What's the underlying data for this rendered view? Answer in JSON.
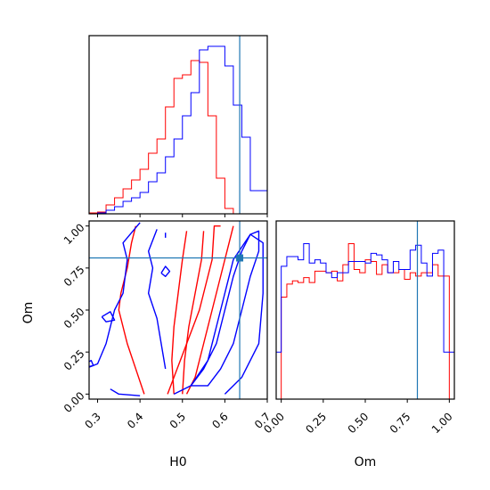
{
  "chart_data": {
    "type": "corner",
    "parameters": [
      "H0",
      "Om"
    ],
    "truth": {
      "H0": 0.635,
      "Om": 0.81
    },
    "colors": {
      "red": "#ff0000",
      "blue": "#0000ff",
      "truth": "#1f77b4"
    },
    "panels": {
      "h0_hist": {
        "type": "step-histogram",
        "xlim": [
          0.28,
          0.7
        ],
        "xticks": [
          0.3,
          0.4,
          0.5,
          0.6,
          0.7
        ],
        "tick_labels_visible": false,
        "series": [
          {
            "color": "red",
            "edges": [
              0.28,
              0.3,
              0.32,
              0.34,
              0.36,
              0.38,
              0.4,
              0.42,
              0.44,
              0.46,
              0.48,
              0.5,
              0.52,
              0.54,
              0.56,
              0.58,
              0.6,
              0.62
            ],
            "counts": [
              0.005,
              0.01,
              0.05,
              0.09,
              0.14,
              0.19,
              0.25,
              0.34,
              0.42,
              0.6,
              0.76,
              0.78,
              0.86,
              0.85,
              0.55,
              0.2,
              0.03
            ]
          },
          {
            "color": "blue",
            "edges": [
              0.3,
              0.32,
              0.34,
              0.36,
              0.38,
              0.4,
              0.42,
              0.44,
              0.46,
              0.48,
              0.5,
              0.52,
              0.54,
              0.56,
              0.58,
              0.6,
              0.62,
              0.64,
              0.66,
              0.68,
              0.7
            ],
            "counts": [
              0.005,
              0.02,
              0.04,
              0.07,
              0.09,
              0.12,
              0.18,
              0.23,
              0.32,
              0.42,
              0.55,
              0.68,
              0.92,
              0.94,
              0.94,
              0.83,
              0.61,
              0.43,
              0.13,
              0.13
            ]
          }
        ]
      },
      "om_hist": {
        "type": "step-histogram",
        "xlim": [
          -0.03,
          1.03
        ],
        "xticks": [
          0.0,
          0.25,
          0.5,
          0.75,
          1.0
        ],
        "tick_labels": [
          "0.00",
          "0.25",
          "0.50",
          "0.75",
          "1.00"
        ],
        "xlabel": "Om",
        "series": [
          {
            "color": "red",
            "edges": [
              0.0,
              0.0333,
              0.0667,
              0.1,
              0.1333,
              0.1667,
              0.2,
              0.2333,
              0.2667,
              0.3,
              0.3333,
              0.3667,
              0.4,
              0.4333,
              0.4667,
              0.5,
              0.5333,
              0.5667,
              0.6,
              0.6333,
              0.6667,
              0.7,
              0.7333,
              0.7667,
              0.8,
              0.8333,
              0.8667,
              0.9,
              0.9333,
              0.9667,
              1.0
            ],
            "counts": [
              0.63,
              0.71,
              0.73,
              0.72,
              0.75,
              0.72,
              0.79,
              0.79,
              0.78,
              0.79,
              0.73,
              0.83,
              0.96,
              0.8,
              0.78,
              0.86,
              0.85,
              0.77,
              0.83,
              0.78,
              0.78,
              0.8,
              0.74,
              0.78,
              0.76,
              0.78,
              0.78,
              0.83,
              0.76,
              0.76
            ]
          },
          {
            "color": "blue",
            "edges": [
              -0.0333,
              0.0,
              0.0333,
              0.0667,
              0.1,
              0.1333,
              0.1667,
              0.2,
              0.2333,
              0.2667,
              0.3,
              0.3333,
              0.3667,
              0.4,
              0.4333,
              0.4667,
              0.5,
              0.5333,
              0.5667,
              0.6,
              0.6333,
              0.6667,
              0.7,
              0.7333,
              0.7667,
              0.8,
              0.8333,
              0.8667,
              0.9,
              0.9333,
              0.9667,
              1.0,
              1.0333
            ],
            "counts": [
              0.29,
              0.82,
              0.88,
              0.88,
              0.86,
              0.96,
              0.84,
              0.86,
              0.84,
              0.78,
              0.75,
              0.78,
              0.78,
              0.85,
              0.85,
              0.85,
              0.84,
              0.9,
              0.89,
              0.86,
              0.78,
              0.85,
              0.8,
              0.8,
              0.92,
              0.95,
              0.84,
              0.76,
              0.9,
              0.92,
              0.29,
              0.29
            ]
          }
        ]
      },
      "joint": {
        "type": "contour",
        "xlim": [
          0.28,
          0.7
        ],
        "ylim": [
          -0.03,
          1.03
        ],
        "xticks": [
          0.3,
          0.4,
          0.5,
          0.6,
          0.7
        ],
        "xtick_labels": [
          "0.3",
          "0.4",
          "0.5",
          "0.6",
          "0.7"
        ],
        "yticks": [
          0.0,
          0.25,
          0.5,
          0.75,
          1.0
        ],
        "ytick_labels": [
          "0.00",
          "0.25",
          "0.50",
          "0.75",
          "1.00"
        ],
        "xlabel": "H0",
        "ylabel": "Om",
        "contours": [
          {
            "color": "red",
            "points": [
              [
                0.48,
                0.0
              ],
              [
                0.475,
                0.2
              ],
              [
                0.48,
                0.4
              ],
              [
                0.49,
                0.6
              ],
              [
                0.5,
                0.8
              ],
              [
                0.51,
                0.97
              ]
            ]
          },
          {
            "color": "red",
            "points": [
              [
                0.55,
                0.97
              ],
              [
                0.545,
                0.8
              ],
              [
                0.53,
                0.6
              ],
              [
                0.515,
                0.4
              ],
              [
                0.505,
                0.2
              ],
              [
                0.5,
                0.0
              ]
            ]
          },
          {
            "color": "red",
            "points": [
              [
                0.41,
                0.0
              ],
              [
                0.39,
                0.15
              ],
              [
                0.37,
                0.3
              ],
              [
                0.35,
                0.5
              ],
              [
                0.355,
                0.6
              ],
              [
                0.37,
                0.75
              ],
              [
                0.38,
                0.9
              ],
              [
                0.39,
                1.0
              ]
            ]
          },
          {
            "color": "red",
            "points": [
              [
                0.465,
                0.0
              ],
              [
                0.48,
                0.1
              ],
              [
                0.51,
                0.3
              ],
              [
                0.54,
                0.5
              ],
              [
                0.56,
                0.7
              ],
              [
                0.57,
                0.8
              ],
              [
                0.575,
                1.0
              ],
              [
                0.59,
                1.0
              ]
            ]
          },
          {
            "color": "red",
            "points": [
              [
                0.51,
                0.0
              ],
              [
                0.53,
                0.1
              ],
              [
                0.55,
                0.3
              ],
              [
                0.57,
                0.5
              ],
              [
                0.59,
                0.7
              ],
              [
                0.61,
                0.9
              ],
              [
                0.62,
                1.0
              ]
            ]
          },
          {
            "color": "blue",
            "points": [
              [
                0.52,
                0.05
              ],
              [
                0.55,
                0.15
              ],
              [
                0.58,
                0.3
              ],
              [
                0.6,
                0.5
              ],
              [
                0.62,
                0.7
              ],
              [
                0.64,
                0.85
              ],
              [
                0.66,
                0.95
              ],
              [
                0.68,
                0.97
              ],
              [
                0.68,
                0.85
              ],
              [
                0.66,
                0.7
              ],
              [
                0.64,
                0.5
              ],
              [
                0.62,
                0.3
              ],
              [
                0.59,
                0.15
              ],
              [
                0.56,
                0.05
              ],
              [
                0.52,
                0.05
              ]
            ]
          },
          {
            "color": "blue",
            "points": [
              [
                0.48,
                0.0
              ],
              [
                0.52,
                0.05
              ],
              [
                0.56,
                0.2
              ],
              [
                0.58,
                0.4
              ],
              [
                0.6,
                0.6
              ],
              [
                0.62,
                0.8
              ],
              [
                0.66,
                0.95
              ],
              [
                0.69,
                0.9
              ],
              [
                0.69,
                0.6
              ],
              [
                0.68,
                0.3
              ],
              [
                0.66,
                0.2
              ],
              [
                0.64,
                0.1
              ],
              [
                0.6,
                0.0
              ]
            ]
          },
          {
            "color": "blue",
            "points": [
              [
                0.33,
                0.03
              ],
              [
                0.35,
                0.0
              ],
              [
                0.4,
                -0.01
              ]
            ]
          },
          {
            "color": "blue",
            "points": [
              [
                0.4,
                1.02
              ],
              [
                0.36,
                0.9
              ],
              [
                0.37,
                0.8
              ],
              [
                0.36,
                0.6
              ],
              [
                0.34,
                0.5
              ],
              [
                0.32,
                0.3
              ],
              [
                0.3,
                0.18
              ],
              [
                0.27,
                0.15
              ]
            ]
          },
          {
            "color": "blue",
            "points": [
              [
                0.44,
                0.98
              ],
              [
                0.42,
                0.85
              ],
              [
                0.43,
                0.75
              ],
              [
                0.42,
                0.6
              ],
              [
                0.44,
                0.45
              ],
              [
                0.45,
                0.3
              ],
              [
                0.46,
                0.15
              ]
            ]
          },
          {
            "color": "blue",
            "points": [
              [
                0.31,
                0.46
              ],
              [
                0.33,
                0.49
              ],
              [
                0.34,
                0.44
              ],
              [
                0.32,
                0.43
              ],
              [
                0.31,
                0.46
              ]
            ]
          },
          {
            "color": "blue",
            "points": [
              [
                0.45,
                0.72
              ],
              [
                0.46,
                0.76
              ],
              [
                0.47,
                0.73
              ],
              [
                0.46,
                0.7
              ],
              [
                0.45,
                0.72
              ]
            ]
          },
          {
            "color": "blue",
            "points": [
              [
                0.27,
                0.18
              ],
              [
                0.285,
                0.2
              ],
              [
                0.29,
                0.17
              ],
              [
                0.275,
                0.16
              ]
            ]
          },
          {
            "color": "blue",
            "points": [
              [
                0.46,
                0.93
              ],
              [
                0.46,
                0.96
              ]
            ]
          }
        ]
      }
    }
  }
}
